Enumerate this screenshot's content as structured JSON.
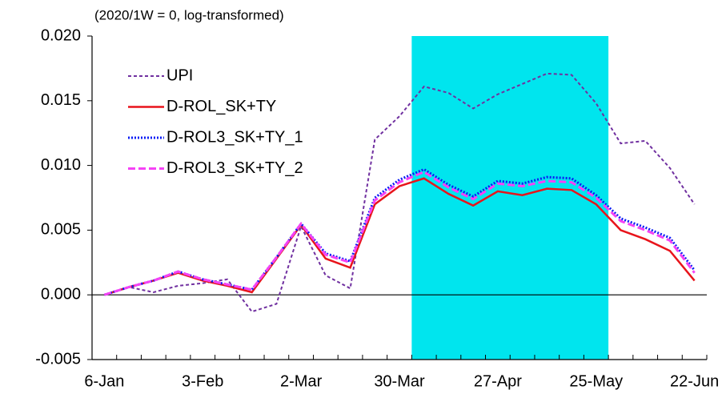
{
  "chart_data": {
    "type": "line",
    "annotation": "(2020/1W = 0, log-transformed)",
    "categories": [
      "6-Jan",
      null,
      null,
      null,
      "3-Feb",
      null,
      null,
      null,
      "2-Mar",
      null,
      null,
      null,
      "30-Mar",
      null,
      null,
      null,
      "27-Apr",
      null,
      null,
      null,
      "25-May",
      null,
      null,
      null,
      "22-Jun"
    ],
    "series": [
      {
        "name": "UPI",
        "color": "#7030a0",
        "line_style": "dashed",
        "values": [
          0,
          0.0006,
          0.0002,
          0.0007,
          0.0009,
          0.0012,
          -0.0013,
          -0.0007,
          0.0053,
          0.0015,
          0.0005,
          0.012,
          0.0138,
          0.0161,
          0.0156,
          0.0144,
          0.0155,
          0.0163,
          0.0171,
          0.017,
          0.0148,
          0.0117,
          0.0119,
          0.0098,
          0.007
        ]
      },
      {
        "name": "D-ROL_SK+TY",
        "color": "#e8141b",
        "line_style": "solid",
        "values": [
          0,
          0.0006,
          0.0011,
          0.0017,
          0.0011,
          0.0007,
          0.0002,
          0.0028,
          0.0054,
          0.0028,
          0.0021,
          0.007,
          0.0084,
          0.009,
          0.0078,
          0.0069,
          0.008,
          0.0077,
          0.0082,
          0.0081,
          0.007,
          0.005,
          0.0043,
          0.0034,
          0.0011
        ]
      },
      {
        "name": "D-ROL3_SK+TY_1",
        "color": "#0a1cf5",
        "line_style": "dotted",
        "values": [
          0,
          0.0006,
          0.0011,
          0.0018,
          0.0012,
          0.0008,
          0.0004,
          0.0029,
          0.0055,
          0.0032,
          0.0026,
          0.0075,
          0.0089,
          0.0097,
          0.0085,
          0.0076,
          0.0088,
          0.0086,
          0.0091,
          0.009,
          0.0077,
          0.0059,
          0.0052,
          0.0044,
          0.0019
        ]
      },
      {
        "name": "D-ROL3_SK+TY_2",
        "color": "#f542f5",
        "line_style": "long-dashed",
        "values": [
          0,
          0.0006,
          0.0011,
          0.0018,
          0.0012,
          0.0008,
          0.0004,
          0.0029,
          0.0055,
          0.0031,
          0.0025,
          0.0073,
          0.0087,
          0.0095,
          0.0083,
          0.0074,
          0.0086,
          0.0084,
          0.0088,
          0.0087,
          0.0075,
          0.0057,
          0.005,
          0.0042,
          0.0017
        ]
      }
    ],
    "ylim": [
      -0.005,
      0.02
    ],
    "yticks": [
      {
        "value": -0.005,
        "label": "-0.005"
      },
      {
        "value": 0,
        "label": "0.000"
      },
      {
        "value": 0.005,
        "label": "0.005"
      },
      {
        "value": 0.01,
        "label": "0.010"
      },
      {
        "value": 0.015,
        "label": "0.015"
      },
      {
        "value": 0.02,
        "label": "0.020"
      }
    ],
    "grid": false,
    "legend": "upper left"
  }
}
